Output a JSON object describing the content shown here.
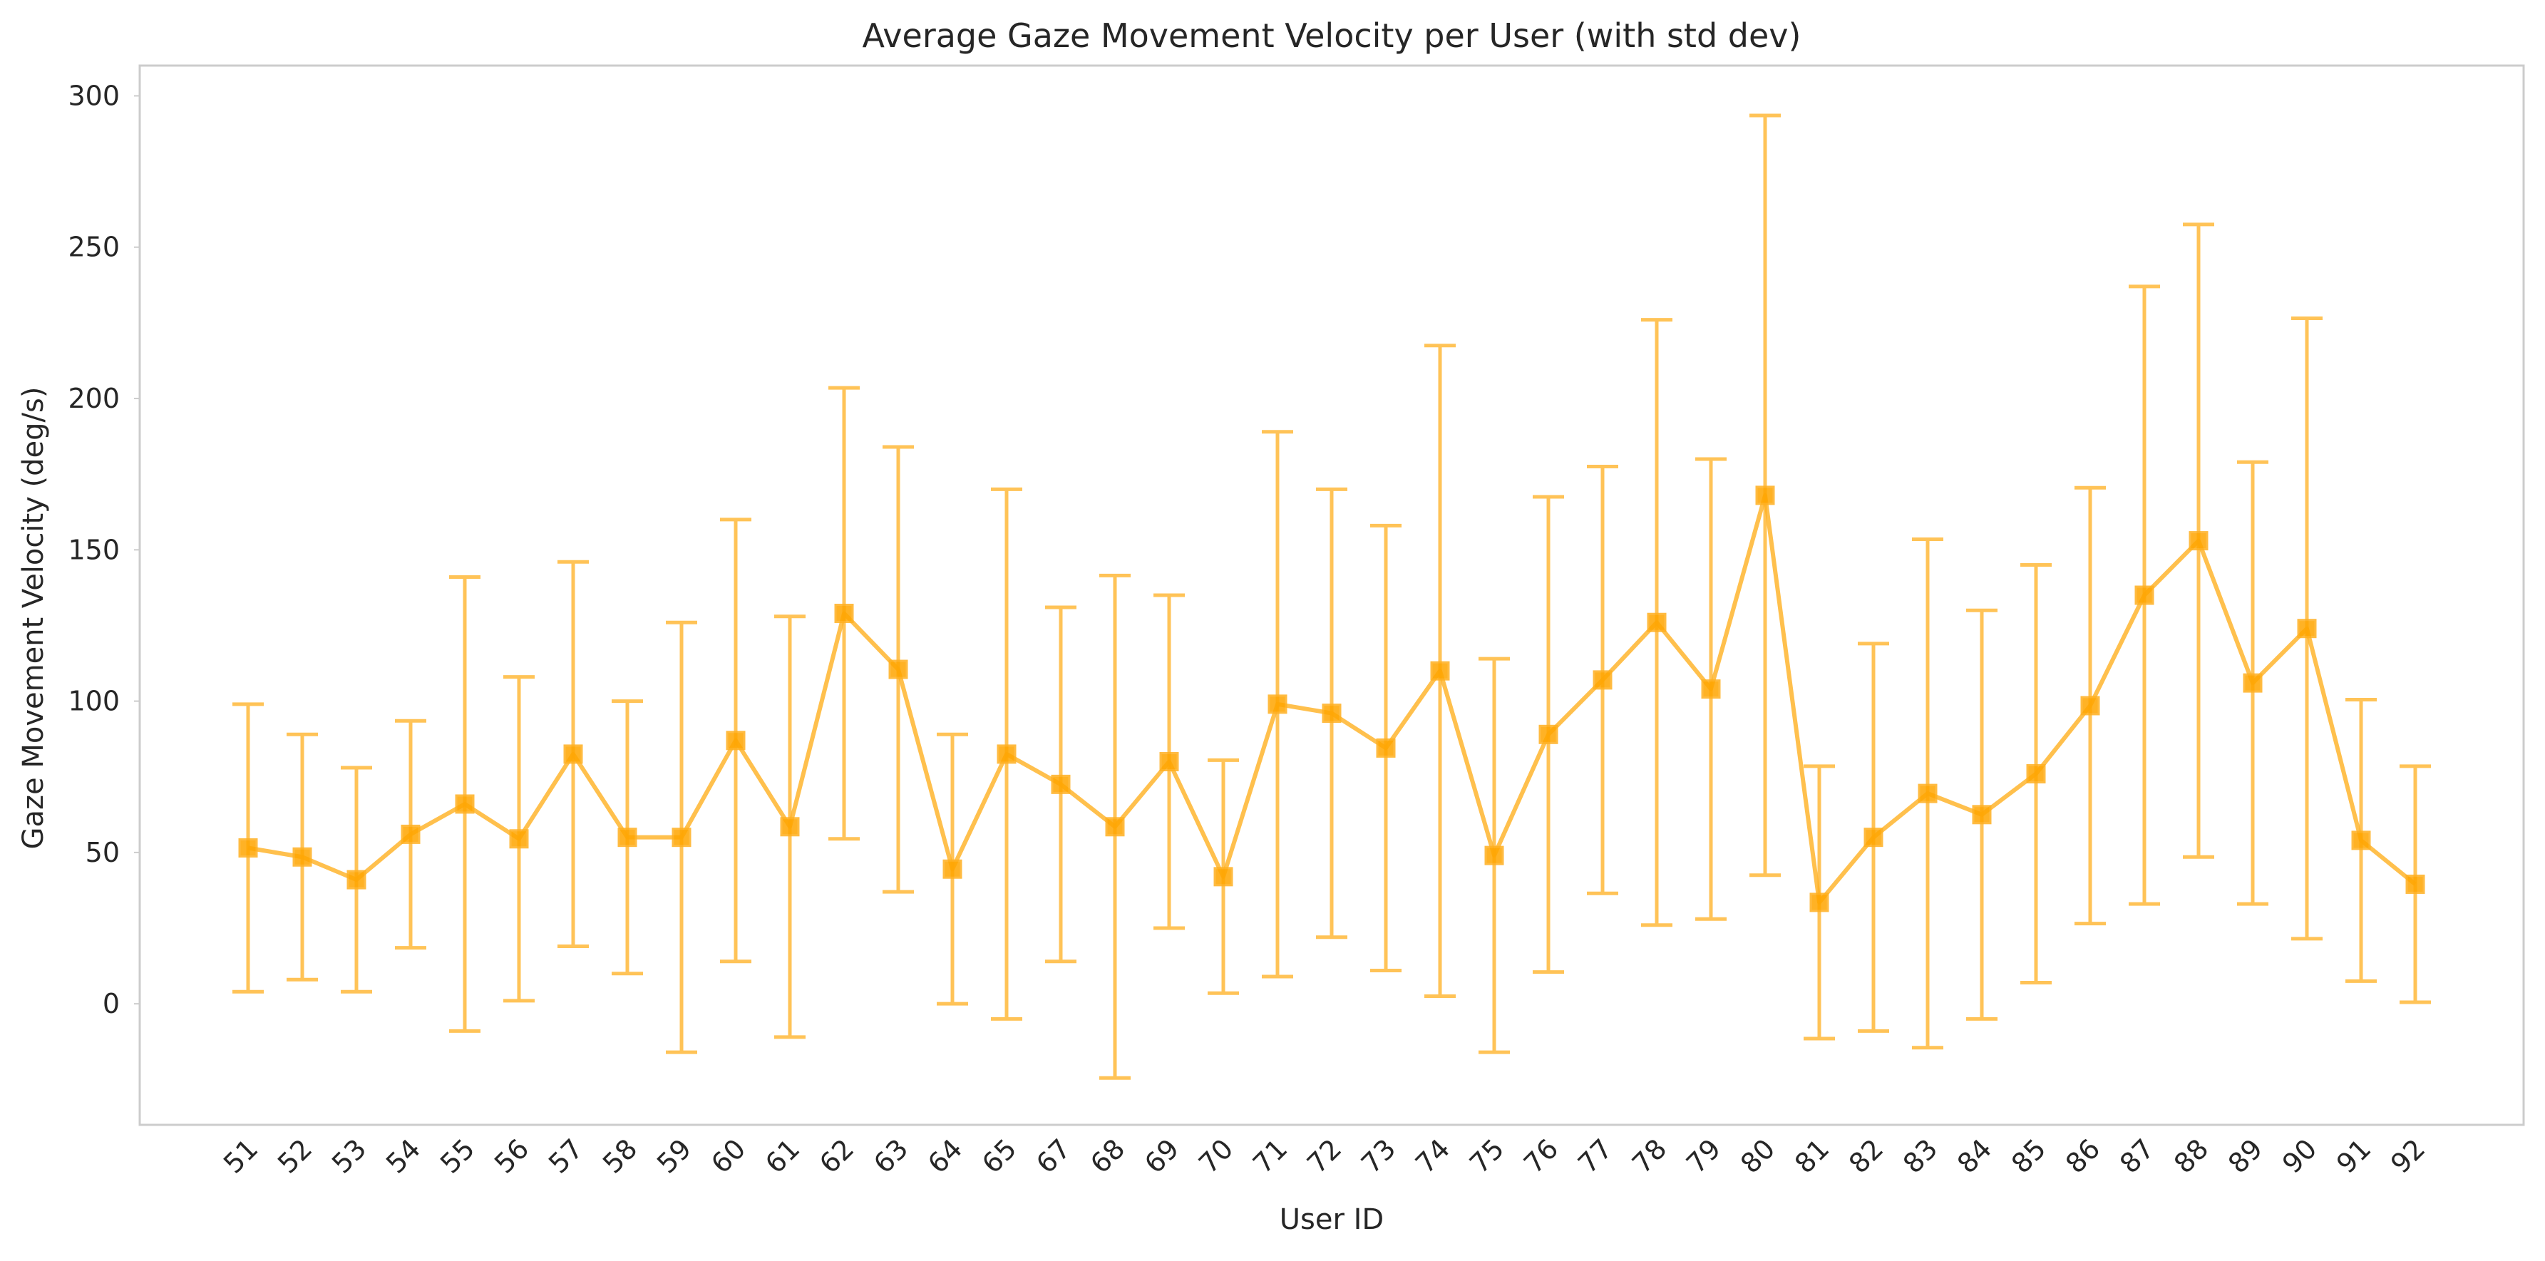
{
  "chart_data": {
    "type": "line",
    "title": "Average Gaze Movement Velocity per User (with std dev)",
    "xlabel": "User ID",
    "ylabel": "Gaze Movement Velocity (deg/s)",
    "ylim": [
      -40,
      310
    ],
    "yticks": [
      0,
      50,
      100,
      150,
      200,
      250,
      300
    ],
    "grid": false,
    "marker": "square",
    "colors": {
      "line": "#FFB020",
      "marker": "#FFA500",
      "frame": "#CCCCCC"
    },
    "categories": [
      "51",
      "52",
      "53",
      "54",
      "55",
      "56",
      "57",
      "58",
      "59",
      "60",
      "61",
      "62",
      "63",
      "64",
      "65",
      "67",
      "68",
      "69",
      "70",
      "71",
      "72",
      "73",
      "74",
      "75",
      "76",
      "77",
      "78",
      "79",
      "80",
      "81",
      "82",
      "83",
      "84",
      "85",
      "86",
      "87",
      "88",
      "89",
      "90",
      "91",
      "92"
    ],
    "series": [
      {
        "values": [
          51.5,
          48.5,
          41,
          56,
          66,
          54.5,
          82.5,
          55,
          55,
          87,
          58.5,
          129,
          110.5,
          44.5,
          82.5,
          72.5,
          58.5,
          80,
          42,
          99,
          96,
          84.5,
          110,
          49,
          89,
          107,
          126,
          104,
          168,
          33.5,
          55,
          69.5,
          62.5,
          76,
          98.5,
          135,
          153,
          106,
          124,
          54,
          39.5
        ],
        "std": [
          47.5,
          40.5,
          37,
          37.5,
          75,
          53.5,
          63.5,
          45,
          71,
          73,
          69.5,
          74.5,
          73.5,
          44.5,
          87.5,
          58.5,
          83,
          55,
          38.5,
          90,
          74,
          73.5,
          107.5,
          65,
          78.5,
          70.5,
          100,
          76,
          125.5,
          45,
          64,
          84,
          67.5,
          69,
          72,
          102,
          104.5,
          73,
          102.5,
          46.5,
          39
        ]
      }
    ]
  }
}
